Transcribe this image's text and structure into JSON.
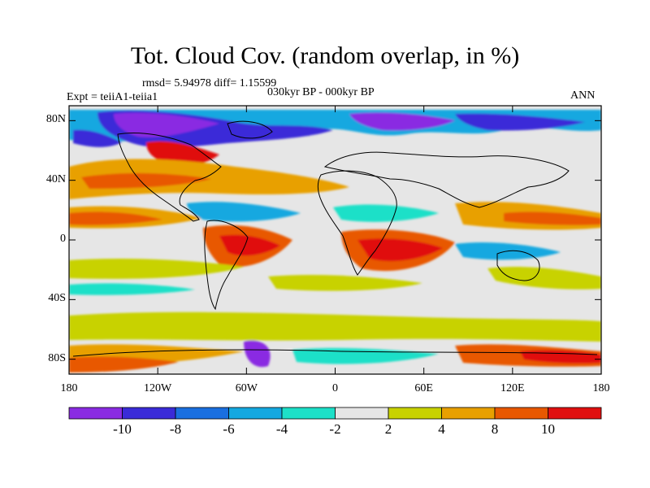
{
  "title": "Tot. Cloud Cov. (random overlap, in %)",
  "stats": "rmsd= 5.94978 diff= 1.15599",
  "period": "030kyr BP - 000kyr BP",
  "expt": "Expt = teiiA1-teiia1",
  "season": "ANN",
  "map": {
    "lon_range": [
      -180,
      180
    ],
    "lat_range": [
      -90,
      90
    ],
    "x_ticks": [
      "180",
      "120W",
      "60W",
      "0",
      "60E",
      "120E",
      "180"
    ],
    "y_ticks": [
      "80N",
      "40N",
      "0",
      "40S",
      "80S"
    ]
  },
  "colorbar": {
    "labels": [
      "-10",
      "-8",
      "-6",
      "-4",
      "-2",
      "2",
      "4",
      "8",
      "10"
    ],
    "colors": [
      "#8a2be2",
      "#3a2bd8",
      "#1a6fe0",
      "#14a8e0",
      "#1de0c8",
      "#e6e6e6",
      "#c8d200",
      "#e8a000",
      "#e85800",
      "#e01010"
    ]
  }
}
